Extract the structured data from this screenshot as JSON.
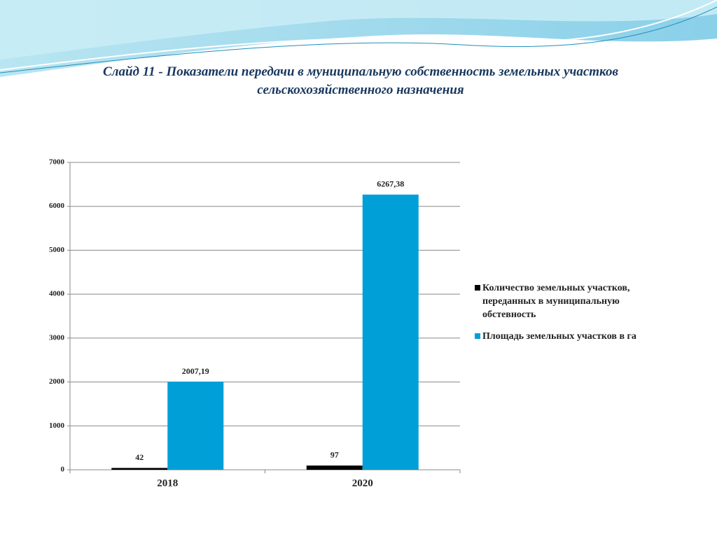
{
  "chart_data": {
    "type": "bar",
    "title": "Слайд 11 - Показатели передачи  в муниципальную собственность земельных участков сельскохозяйственного назначения",
    "categories": [
      "2018",
      "2020"
    ],
    "series": [
      {
        "name": "Количество земельных участков, переданных в муниципальную обстевность",
        "color": "#000000",
        "values": [
          42,
          97
        ]
      },
      {
        "name": "Площадь земельных участков в га",
        "color": "#009fd8",
        "values": [
          2007.19,
          6267.38
        ],
        "value_labels": [
          "2007,19",
          "6267,38"
        ]
      }
    ],
    "ylim": [
      0,
      7000
    ],
    "yticks": [
      0,
      1000,
      2000,
      3000,
      4000,
      5000,
      6000,
      7000
    ],
    "grid": true,
    "legend": "right"
  }
}
